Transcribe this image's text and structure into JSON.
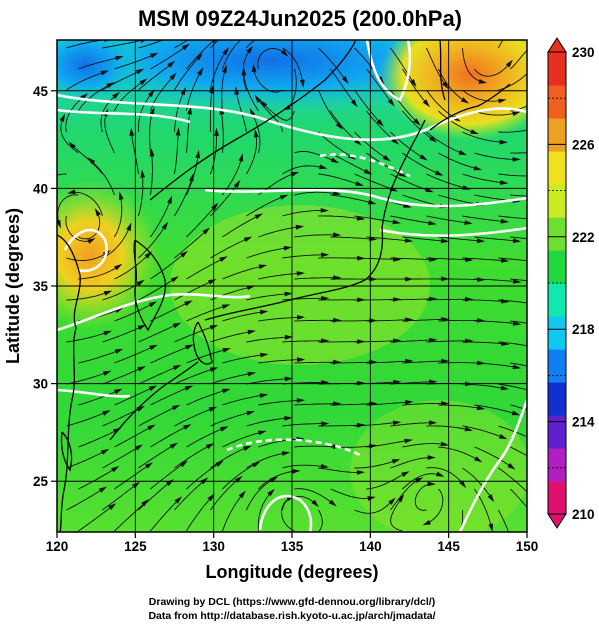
{
  "title": "MSM 09Z24Jun2025 (200.0hPa)",
  "xlabel": "Longitude (degrees)",
  "ylabel": "Latitude  (degrees)",
  "credit_line1": "Drawing by DCL (https://www.gfd-dennou.org/library/dcl/)",
  "credit_line2": "Data from http://database.rish.kyoto-u.ac.jp/arch/jmadata/",
  "map": {
    "lon_range": [
      120,
      150
    ],
    "lat_range": [
      22.4,
      47.6
    ],
    "lon_ticks": [
      120,
      125,
      130,
      135,
      140,
      145,
      150
    ],
    "lat_ticks": [
      25,
      30,
      35,
      40,
      45
    ],
    "grid": true,
    "field": "geopotential / temperature shading with streamlines",
    "high_centers": [
      {
        "lon": 122,
        "lat": 37.5
      },
      {
        "lon": 147,
        "lat": 46
      }
    ],
    "low_centers": [
      {
        "lon": 133.5,
        "lat": 47
      },
      {
        "lon": 135,
        "lat": 24
      },
      {
        "lon": 144,
        "lat": 25
      }
    ]
  },
  "colorbar": {
    "min": 210,
    "max": 230,
    "tick_labels": [
      "230",
      "226",
      "222",
      "218",
      "214",
      "210"
    ],
    "colors": [
      "#e01070",
      "#b020c0",
      "#6020d0",
      "#1030d0",
      "#1080f0",
      "#10c8f0",
      "#10e8b0",
      "#20d840",
      "#70e030",
      "#c8ec20",
      "#f0e020",
      "#f0a020",
      "#f06020",
      "#e83020"
    ]
  }
}
